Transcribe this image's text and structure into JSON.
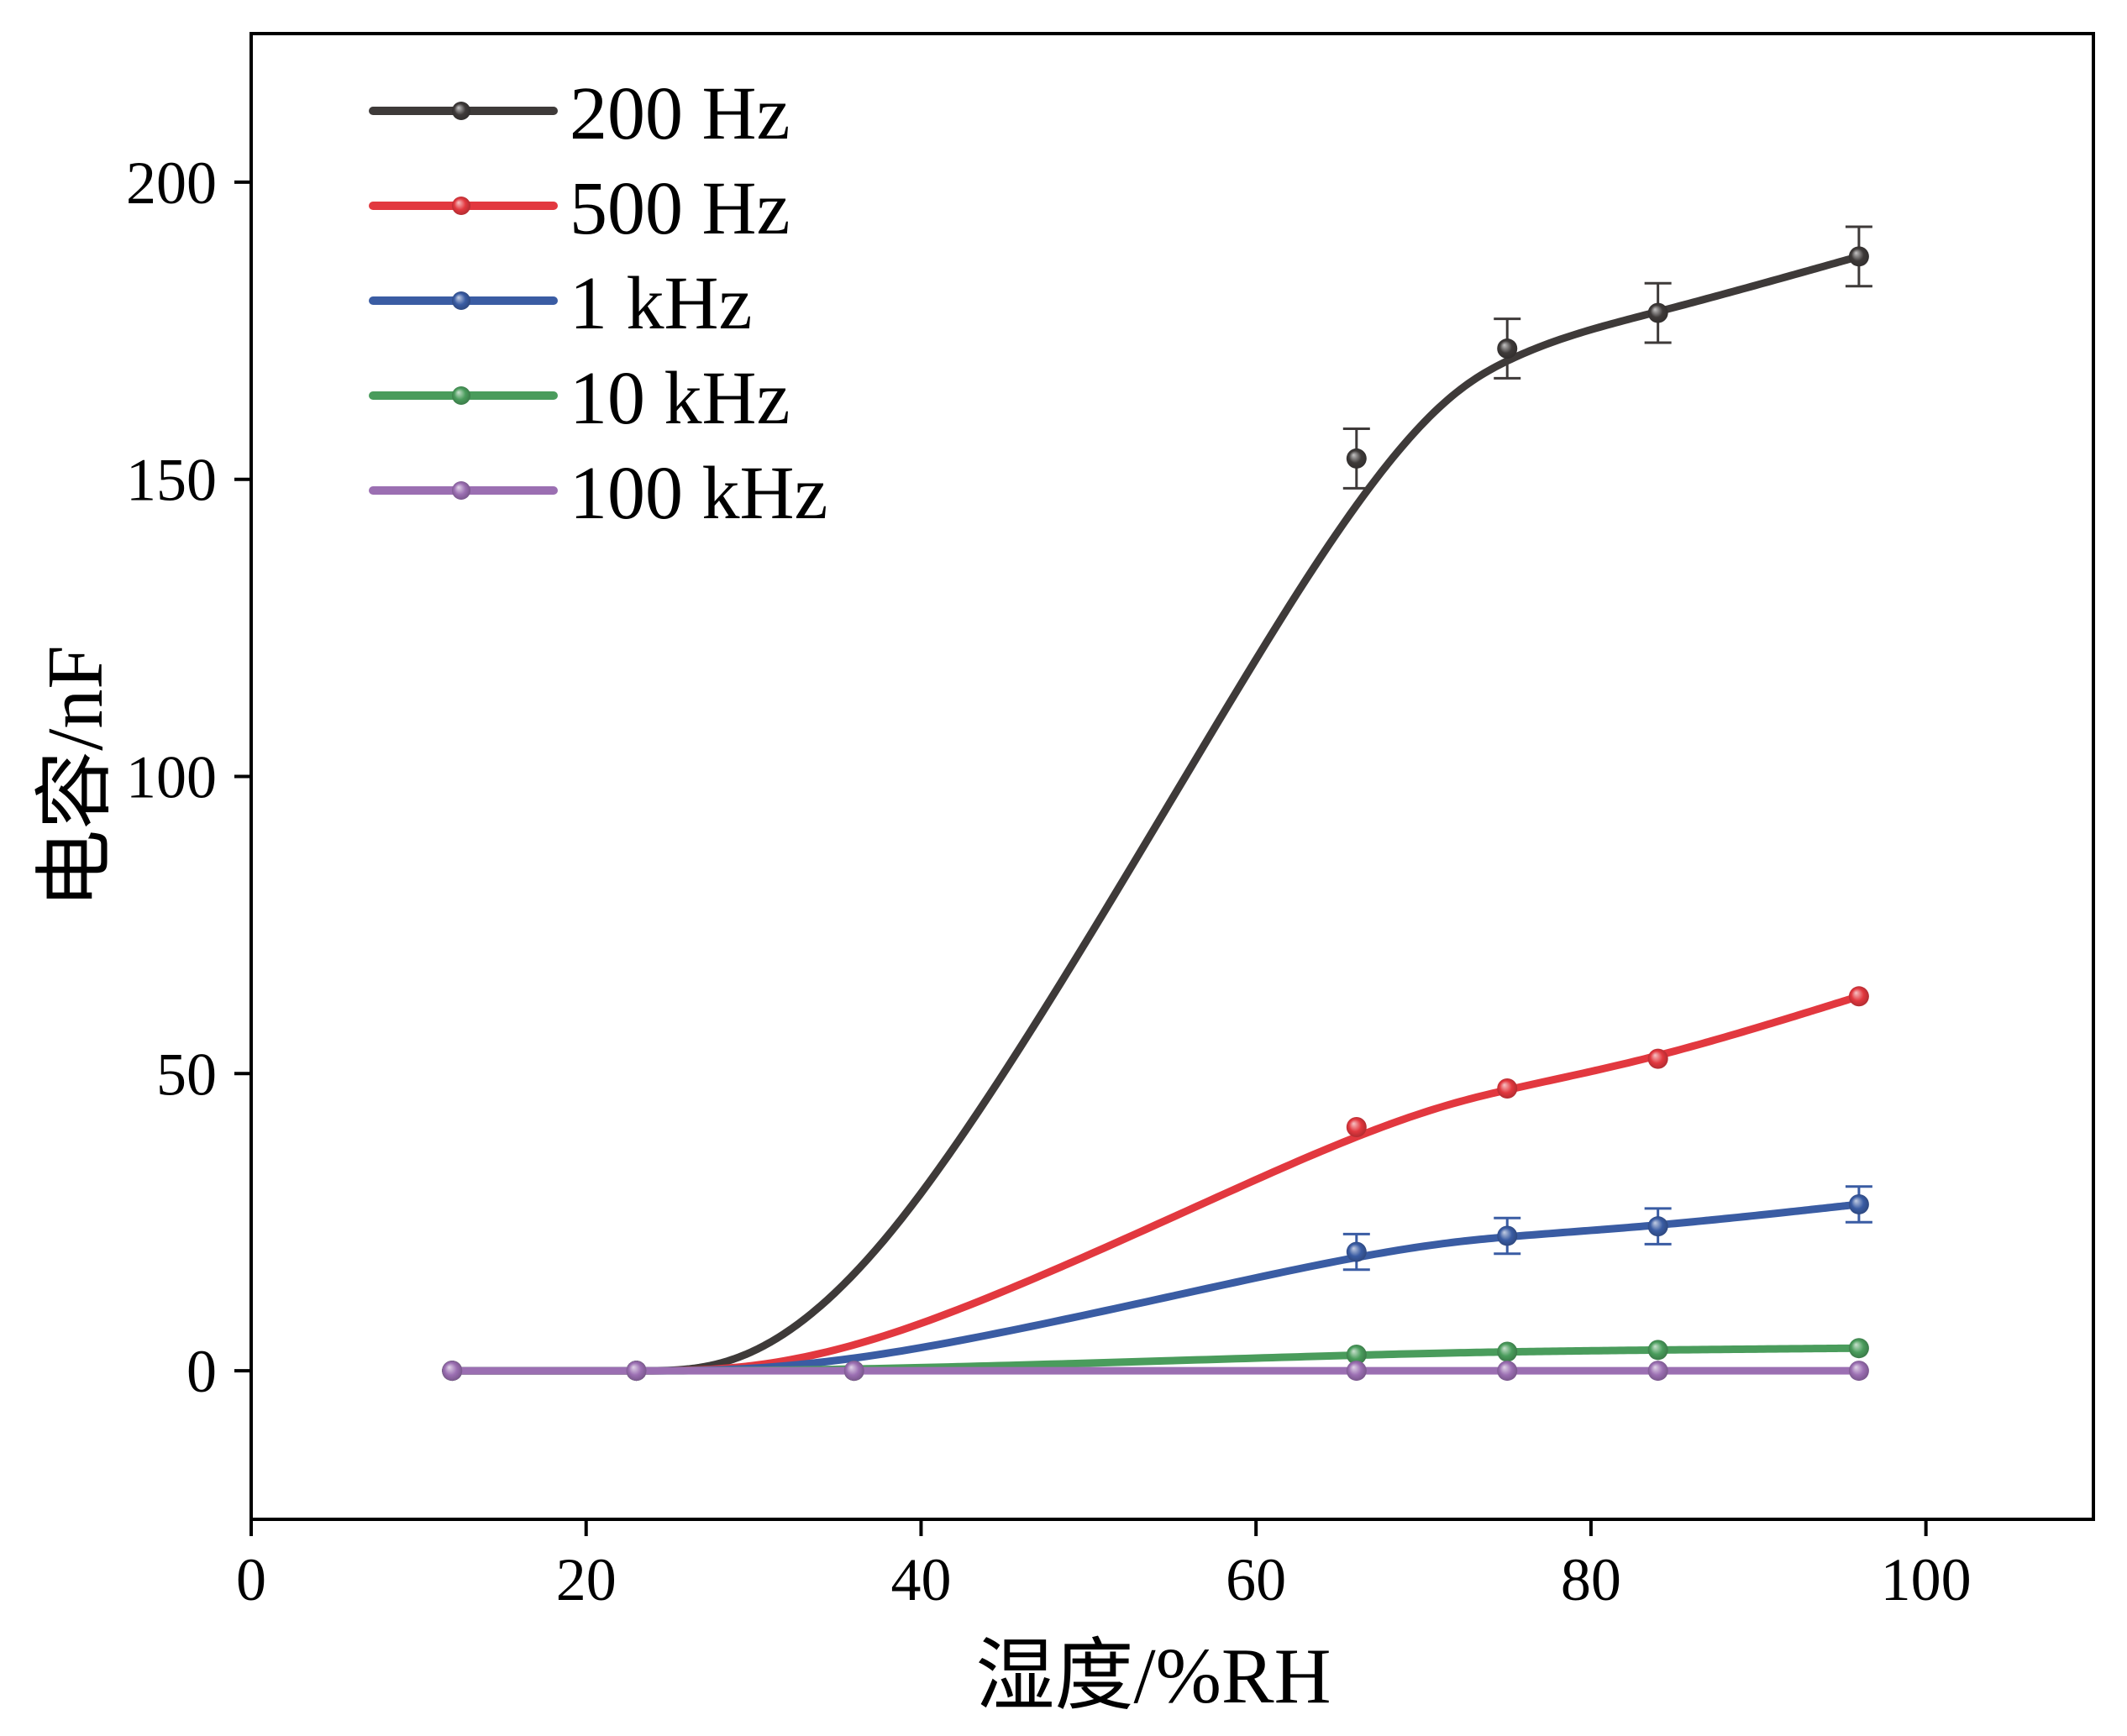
{
  "chart_data": {
    "type": "line",
    "xlabel": "湿度/%RH",
    "ylabel": "电容/nF",
    "xlim": [
      0,
      110
    ],
    "ylim": [
      -25,
      225
    ],
    "xticks": [
      0,
      20,
      40,
      60,
      80,
      100
    ],
    "yticks": [
      0,
      50,
      100,
      150,
      200
    ],
    "grid": false,
    "legend_position": "top-left",
    "x": [
      12,
      23,
      36,
      66,
      75,
      84,
      96
    ],
    "series": [
      {
        "name": "200 Hz",
        "color": "#3e3a39",
        "values": [
          0,
          0,
          0,
          153.5,
          172,
          178,
          187.5
        ],
        "error": [
          0,
          0,
          0,
          5,
          5,
          5,
          5
        ]
      },
      {
        "name": "500 Hz",
        "color": "#e2383f",
        "values": [
          0,
          0,
          0,
          41,
          47.5,
          52.5,
          63
        ]
      },
      {
        "name": "1 kHz",
        "color": "#3a5ca3",
        "values": [
          0,
          0,
          0,
          20,
          22.7,
          24.3,
          28
        ],
        "error": [
          0,
          0,
          0,
          3,
          3,
          3,
          3
        ]
      },
      {
        "name": "10 kHz",
        "color": "#4a9c5c",
        "values": [
          0,
          0,
          0,
          2.7,
          3.2,
          3.5,
          3.8
        ]
      },
      {
        "name": "100 kHz",
        "color": "#9b6fb2",
        "values": [
          0,
          0,
          0,
          0,
          0,
          0,
          0
        ]
      }
    ]
  }
}
